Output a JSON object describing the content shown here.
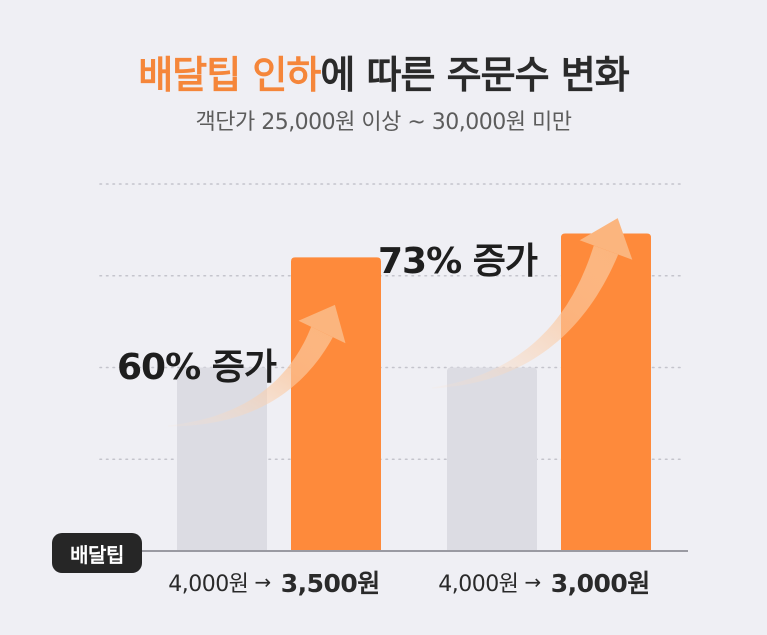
{
  "title": {
    "highlight": "배달팁 인하",
    "rest": "에 따른 주문수 변화"
  },
  "subtitle": "객단가 25,000원 이상 ~ 30,000원 미만",
  "badge": "배달팁",
  "colors": {
    "before": "#dcdce3",
    "after": "#fe8a3b",
    "accent": "#f5863a",
    "grid": "#c4c4cc",
    "axis": "#9a9aa2"
  },
  "chart_data": {
    "type": "bar",
    "categories": [
      "4,000원 → 3,500원",
      "4,000원 → 3,000원"
    ],
    "series": [
      {
        "values": [
          100,
          100
        ]
      },
      {
        "values": [
          160,
          173
        ]
      }
    ],
    "ylim": [
      0,
      200
    ],
    "grid": true,
    "annotations": [
      "60% 증가",
      "73% 증가"
    ]
  },
  "categories": [
    {
      "from": "4,000원",
      "arrow": "→",
      "to": "3,500원"
    },
    {
      "from": "4,000원",
      "arrow": "→",
      "to": "3,000원"
    }
  ]
}
